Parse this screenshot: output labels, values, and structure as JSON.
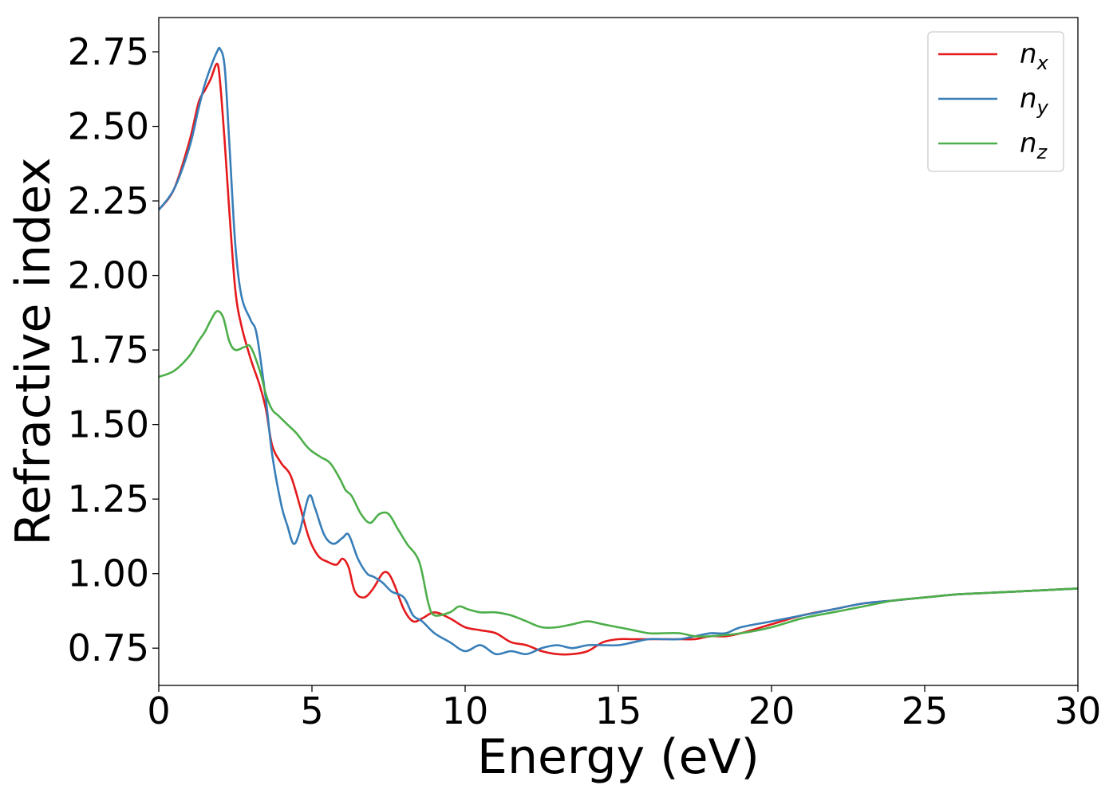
{
  "chart_data": {
    "type": "line",
    "xlabel": "Energy (eV)",
    "ylabel": "Refractive index",
    "xlim": [
      0,
      30
    ],
    "ylim": [
      0.625,
      2.865
    ],
    "xticks": [
      0,
      5,
      10,
      15,
      20,
      25,
      30
    ],
    "xtick_labels": [
      "0",
      "5",
      "10",
      "15",
      "20",
      "25",
      "30"
    ],
    "yticks": [
      0.75,
      1.0,
      1.25,
      1.5,
      1.75,
      2.0,
      2.25,
      2.5,
      2.75
    ],
    "ytick_labels": [
      "0.75",
      "1.00",
      "1.25",
      "1.50",
      "1.75",
      "2.00",
      "2.25",
      "2.50",
      "2.75"
    ],
    "grid": false,
    "legend_position": "top-right",
    "series": [
      {
        "name": "n",
        "sub": "x",
        "color": "#e41a1c",
        "x": [
          0,
          0.5,
          1.0,
          1.3,
          1.5,
          1.7,
          1.9,
          2.0,
          2.15,
          2.3,
          2.5,
          2.7,
          3.0,
          3.3,
          3.5,
          3.7,
          4.0,
          4.3,
          4.6,
          4.9,
          5.2,
          5.5,
          5.8,
          6.0,
          6.2,
          6.4,
          6.7,
          7.0,
          7.3,
          7.5,
          7.7,
          8.0,
          8.3,
          8.6,
          9.0,
          9.5,
          10.0,
          10.5,
          11.0,
          11.5,
          12.0,
          12.5,
          13.0,
          13.5,
          14.0,
          14.5,
          15.0,
          15.5,
          16.0,
          16.5,
          17.0,
          17.5,
          18.0,
          18.5,
          19.0,
          20.0,
          21.0,
          22.0,
          23.0,
          24.0,
          25.0,
          26.0,
          27.0,
          28.0,
          29.0,
          30.0
        ],
        "y": [
          2.22,
          2.29,
          2.45,
          2.58,
          2.62,
          2.66,
          2.71,
          2.65,
          2.45,
          2.22,
          1.95,
          1.83,
          1.72,
          1.63,
          1.55,
          1.43,
          1.37,
          1.33,
          1.23,
          1.12,
          1.06,
          1.04,
          1.03,
          1.05,
          1.02,
          0.94,
          0.92,
          0.95,
          1.0,
          1.0,
          0.96,
          0.88,
          0.84,
          0.85,
          0.87,
          0.85,
          0.82,
          0.81,
          0.8,
          0.77,
          0.76,
          0.74,
          0.73,
          0.73,
          0.74,
          0.77,
          0.78,
          0.78,
          0.78,
          0.78,
          0.78,
          0.78,
          0.79,
          0.79,
          0.8,
          0.83,
          0.86,
          0.88,
          0.9,
          0.91,
          0.92,
          0.93,
          0.935,
          0.94,
          0.945,
          0.95
        ]
      },
      {
        "name": "n",
        "sub": "y",
        "color": "#377eb8",
        "x": [
          0,
          0.5,
          1.0,
          1.3,
          1.5,
          1.7,
          1.9,
          2.0,
          2.15,
          2.3,
          2.5,
          2.7,
          3.0,
          3.2,
          3.5,
          3.7,
          4.0,
          4.2,
          4.4,
          4.6,
          4.9,
          5.1,
          5.4,
          5.7,
          6.0,
          6.2,
          6.5,
          6.8,
          7.0,
          7.3,
          7.6,
          8.0,
          8.3,
          8.6,
          9.0,
          9.5,
          10.0,
          10.5,
          11.0,
          11.5,
          12.0,
          12.5,
          13.0,
          13.5,
          14.0,
          14.5,
          15.0,
          15.5,
          16.0,
          16.5,
          17.0,
          17.5,
          18.0,
          18.5,
          19.0,
          20.0,
          21.0,
          22.0,
          23.0,
          24.0,
          25.0,
          26.0,
          27.0,
          28.0,
          29.0,
          30.0
        ],
        "y": [
          2.22,
          2.29,
          2.43,
          2.56,
          2.64,
          2.7,
          2.75,
          2.76,
          2.7,
          2.45,
          2.1,
          1.93,
          1.85,
          1.8,
          1.58,
          1.4,
          1.23,
          1.16,
          1.1,
          1.14,
          1.26,
          1.22,
          1.13,
          1.1,
          1.12,
          1.13,
          1.05,
          1.0,
          0.99,
          0.97,
          0.94,
          0.92,
          0.86,
          0.84,
          0.8,
          0.77,
          0.74,
          0.76,
          0.73,
          0.74,
          0.73,
          0.75,
          0.76,
          0.75,
          0.76,
          0.76,
          0.76,
          0.77,
          0.78,
          0.78,
          0.78,
          0.79,
          0.8,
          0.8,
          0.82,
          0.84,
          0.86,
          0.88,
          0.9,
          0.91,
          0.92,
          0.93,
          0.935,
          0.94,
          0.945,
          0.95
        ]
      },
      {
        "name": "n",
        "sub": "z",
        "color": "#4daf4a",
        "x": [
          0,
          0.5,
          1.0,
          1.3,
          1.5,
          1.7,
          1.9,
          2.1,
          2.3,
          2.5,
          2.8,
          3.0,
          3.3,
          3.5,
          3.7,
          3.9,
          4.2,
          4.5,
          4.8,
          5.0,
          5.3,
          5.6,
          5.9,
          6.1,
          6.3,
          6.6,
          6.9,
          7.2,
          7.5,
          7.8,
          8.1,
          8.5,
          8.8,
          9.0,
          9.5,
          9.8,
          10.1,
          10.5,
          11.0,
          11.5,
          12.0,
          12.5,
          13.0,
          13.5,
          14.0,
          14.5,
          15.0,
          15.5,
          16.0,
          16.5,
          17.0,
          17.5,
          18.0,
          19.0,
          20.0,
          21.0,
          22.0,
          23.0,
          24.0,
          25.0,
          26.0,
          27.0,
          28.0,
          29.0,
          30.0
        ],
        "y": [
          1.66,
          1.68,
          1.73,
          1.78,
          1.81,
          1.85,
          1.88,
          1.86,
          1.78,
          1.75,
          1.76,
          1.76,
          1.68,
          1.6,
          1.55,
          1.53,
          1.5,
          1.47,
          1.43,
          1.41,
          1.39,
          1.37,
          1.32,
          1.28,
          1.26,
          1.2,
          1.17,
          1.2,
          1.2,
          1.15,
          1.1,
          1.04,
          0.9,
          0.86,
          0.87,
          0.89,
          0.88,
          0.87,
          0.87,
          0.86,
          0.84,
          0.82,
          0.82,
          0.83,
          0.84,
          0.83,
          0.82,
          0.81,
          0.8,
          0.8,
          0.8,
          0.79,
          0.79,
          0.8,
          0.82,
          0.85,
          0.87,
          0.89,
          0.91,
          0.92,
          0.93,
          0.935,
          0.94,
          0.945,
          0.95
        ]
      }
    ]
  }
}
